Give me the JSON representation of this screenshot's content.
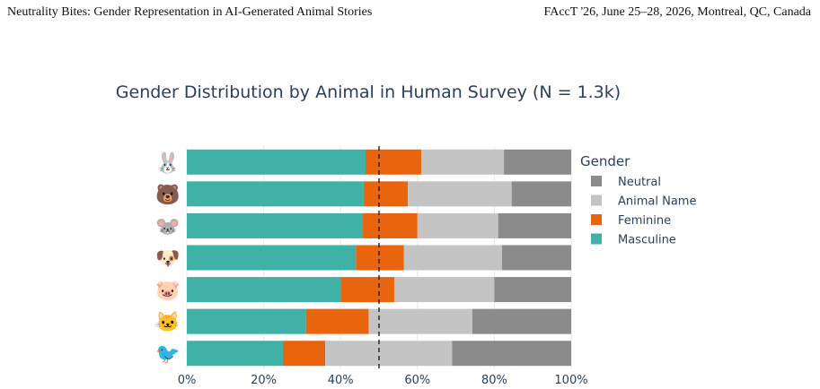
{
  "header": {
    "left": "Neutrality Bites: Gender Representation in AI-Generated Animal Stories",
    "right": "FAccT '26, June 25–28, 2026, Montreal, QC, Canada"
  },
  "chart_data": {
    "type": "bar",
    "orientation": "horizontal",
    "stacked": true,
    "title": "Gender Distribution by Animal in Human Survey (N = 1.3k)",
    "xlabel": "",
    "ylabel": "",
    "xlim": [
      0,
      100
    ],
    "x_tick_labels": [
      "0%",
      "20%",
      "40%",
      "60%",
      "80%",
      "100%"
    ],
    "reference_line": {
      "value": 50,
      "style": "dashed"
    },
    "categories": [
      "rabbit",
      "bear",
      "mouse",
      "dog",
      "pig",
      "cat",
      "bird"
    ],
    "category_icons": [
      "🐰",
      "🐻",
      "🐭",
      "🐶",
      "🐷",
      "🐱",
      "🐦"
    ],
    "legend": {
      "title": "Gender",
      "position": "right",
      "order": [
        "Neutral",
        "Animal Name",
        "Feminine",
        "Masculine"
      ]
    },
    "series": [
      {
        "name": "Masculine",
        "color": "#3fb1a6",
        "values": [
          46.5,
          46,
          45.8,
          44,
          40,
          31,
          25
        ]
      },
      {
        "name": "Feminine",
        "color": "#e8650e",
        "values": [
          14.5,
          11.5,
          14.2,
          12.5,
          14,
          16.3,
          11
        ]
      },
      {
        "name": "Animal Name",
        "color": "#c4c4c4",
        "values": [
          21.5,
          27,
          21,
          25.5,
          26,
          27,
          33
        ]
      },
      {
        "name": "Neutral",
        "color": "#8b8b8b",
        "values": [
          17.5,
          15.5,
          19,
          18,
          20,
          25.7,
          31
        ]
      }
    ]
  }
}
